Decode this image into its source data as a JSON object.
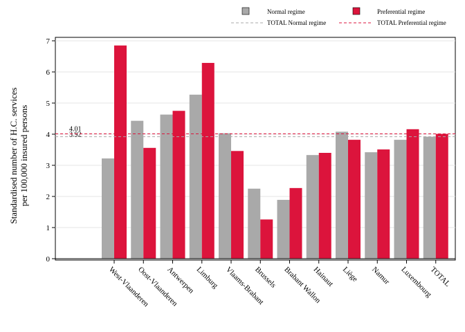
{
  "chart_data": {
    "type": "bar",
    "ylabel_line1": "Standardised number of H.C. services",
    "ylabel_line2": "per 100,000 insured persons",
    "ylim": [
      0,
      7
    ],
    "yticks": [
      "0",
      "1",
      "2",
      "3",
      "4",
      "5",
      "6",
      "7"
    ],
    "grid": true,
    "legend_position": "top-right",
    "categories": [
      "West-Vlaanderen",
      "Oost-Vlaanderen",
      "Antwerpen",
      "Limburg",
      "Vlaams-Brabant",
      "Brussels",
      "Brabant Wallon",
      "Hainaut",
      "Liège",
      "Namur",
      "Luxembourg",
      "TOTAL"
    ],
    "series": [
      {
        "name": "Normal regime",
        "color": "#a9a9a9",
        "values": [
          3.22,
          4.43,
          4.63,
          5.27,
          4.03,
          2.25,
          1.89,
          3.33,
          4.08,
          3.42,
          3.82,
          3.92
        ]
      },
      {
        "name": "Preferential regime",
        "color": "#dc143c",
        "values": [
          6.85,
          3.56,
          4.75,
          6.29,
          3.46,
          1.26,
          2.27,
          3.4,
          3.82,
          3.51,
          4.16,
          4.01
        ]
      }
    ],
    "reference_lines": [
      {
        "name": "TOTAL Normal regime",
        "value": 3.92,
        "label": "3.92",
        "color": "#a9a9a9"
      },
      {
        "name": "TOTAL Preferential regime",
        "value": 4.01,
        "label": "4.01",
        "color": "#dc143c"
      }
    ]
  }
}
